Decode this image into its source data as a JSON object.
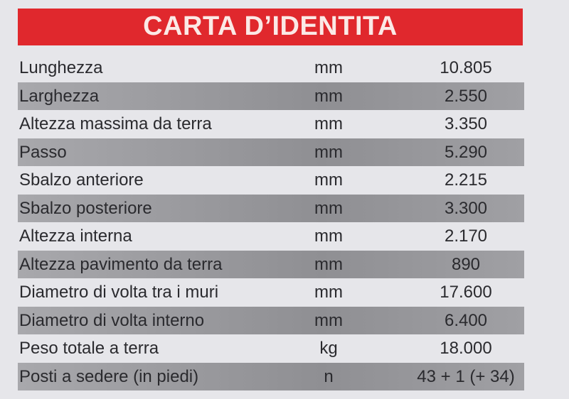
{
  "header": {
    "title": "CARTA D’IDENTITA"
  },
  "table": {
    "rows": [
      [
        "Lunghezza",
        "mm",
        "10.805"
      ],
      [
        "Larghezza",
        "mm",
        "2.550"
      ],
      [
        "Altezza massima da terra",
        "mm",
        "3.350"
      ],
      [
        "Passo",
        "mm",
        "5.290"
      ],
      [
        "Sbalzo anteriore",
        "mm",
        "2.215"
      ],
      [
        "Sbalzo posteriore",
        "mm",
        "3.300"
      ],
      [
        "Altezza interna",
        "mm",
        "2.170"
      ],
      [
        "Altezza pavimento da terra",
        "mm",
        "890"
      ],
      [
        "Diametro di volta tra i muri",
        "mm",
        "17.600"
      ],
      [
        "Diametro di volta interno",
        "mm",
        "6.400"
      ],
      [
        "Peso totale a terra",
        "kg",
        "18.000"
      ],
      [
        "Posti a sedere (in piedi)",
        "n",
        "43 + 1 (+ 34)"
      ]
    ]
  }
}
